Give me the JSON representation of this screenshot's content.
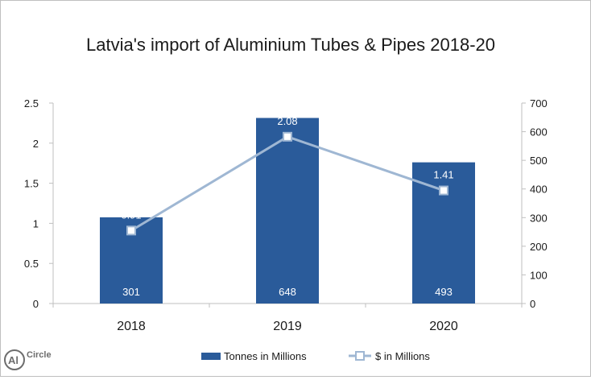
{
  "chart_data": {
    "type": "bar",
    "title": "Latvia's import of Aluminium Tubes & Pipes 2018-20",
    "categories": [
      "2018",
      "2019",
      "2020"
    ],
    "series": [
      {
        "name": "Tonnes in Millions",
        "type": "bar",
        "axis": "right",
        "values": [
          301,
          648,
          493
        ],
        "data_labels": [
          "301",
          "648",
          "493"
        ],
        "color": "#2a5b9a"
      },
      {
        "name": "$ in Millions",
        "type": "line",
        "axis": "left",
        "values": [
          0.91,
          2.08,
          1.41
        ],
        "data_labels": [
          "0.91",
          "2.08",
          "1.41"
        ],
        "color": "#9fb7d3"
      }
    ],
    "left_axis": {
      "ylim": [
        0,
        2.5
      ],
      "ticks": [
        "0",
        "0.5",
        "1",
        "1.5",
        "2",
        "2.5"
      ]
    },
    "right_axis": {
      "ylim": [
        0,
        700
      ],
      "ticks": [
        "0",
        "100",
        "200",
        "300",
        "400",
        "500",
        "600",
        "700"
      ]
    },
    "grid": false,
    "legend_position": "bottom"
  },
  "logo": {
    "text": "AlCircle"
  }
}
